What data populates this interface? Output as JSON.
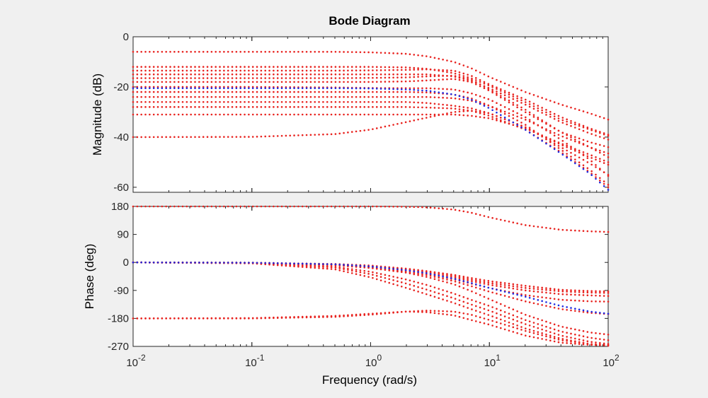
{
  "chart_data": [
    {
      "type": "line",
      "title": "Bode Diagram",
      "ylabel": "Magnitude (dB)",
      "x_scale": "log",
      "xlim": [
        0.01,
        100
      ],
      "ylim": [
        -62,
        0
      ],
      "yticks": [
        0,
        -20,
        -40,
        -60
      ],
      "ytick_labels": [
        "0",
        "-20",
        "-40",
        "-60"
      ],
      "marker": "dotted",
      "colors": {
        "red": "#e8231f",
        "blue": "#1f2be0",
        "background": "#f0f0f0",
        "axes": "#ffffff"
      },
      "x": [
        0.01,
        0.1,
        0.5,
        1,
        2,
        3,
        5,
        7,
        10,
        20,
        40,
        70,
        100
      ],
      "series": [
        {
          "name": "red-1",
          "color": "red",
          "values": [
            -6,
            -6,
            -6,
            -6.2,
            -6.8,
            -7.8,
            -10,
            -12.5,
            -16,
            -22,
            -27,
            -30.5,
            -33
          ]
        },
        {
          "name": "red-2",
          "color": "red",
          "values": [
            -12,
            -12,
            -12,
            -12,
            -12.2,
            -12.8,
            -14.5,
            -16.5,
            -19.5,
            -26,
            -33,
            -37,
            -39.5
          ]
        },
        {
          "name": "red-3",
          "color": "red",
          "values": [
            -13.5,
            -13.5,
            -13.5,
            -13.4,
            -13.2,
            -13,
            -13.5,
            -15.5,
            -19,
            -25,
            -32,
            -36.5,
            -39
          ]
        },
        {
          "name": "red-4",
          "color": "red",
          "values": [
            -15,
            -15,
            -15,
            -15,
            -15,
            -15,
            -15.8,
            -17.5,
            -20.5,
            -27,
            -34,
            -38.5,
            -41
          ]
        },
        {
          "name": "red-5",
          "color": "red",
          "values": [
            -16.5,
            -16.5,
            -16.5,
            -16.4,
            -16.2,
            -15.8,
            -15.5,
            -17,
            -21,
            -29,
            -38,
            -44,
            -48
          ]
        },
        {
          "name": "red-6",
          "color": "red",
          "values": [
            -18,
            -18,
            -18,
            -18,
            -17.8,
            -17.4,
            -16.8,
            -18,
            -21.5,
            -30,
            -38,
            -42,
            -44
          ]
        },
        {
          "name": "red-7",
          "color": "red",
          "values": [
            -20,
            -20,
            -20.2,
            -20.4,
            -20.5,
            -20.5,
            -21,
            -22.5,
            -25,
            -32,
            -41,
            -49,
            -55.5
          ]
        },
        {
          "name": "red-8",
          "color": "red",
          "values": [
            -22,
            -22,
            -22,
            -22,
            -22,
            -22.2,
            -23,
            -24.5,
            -27.5,
            -35,
            -45,
            -53,
            -59
          ]
        },
        {
          "name": "red-9",
          "color": "red",
          "values": [
            -24,
            -24,
            -24,
            -24,
            -24,
            -24,
            -24.5,
            -25.5,
            -27.5,
            -33,
            -39.5,
            -44,
            -46.5
          ]
        },
        {
          "name": "red-10",
          "color": "red",
          "values": [
            -26,
            -26,
            -26,
            -26,
            -26,
            -26.4,
            -27.5,
            -28.5,
            -30.5,
            -36,
            -43,
            -48,
            -51
          ]
        },
        {
          "name": "red-11",
          "color": "red",
          "values": [
            -28,
            -28,
            -28,
            -28,
            -28,
            -28.2,
            -28.6,
            -29.5,
            -31.5,
            -37,
            -46,
            -54,
            -60
          ]
        },
        {
          "name": "red-12",
          "color": "red",
          "values": [
            -31,
            -31,
            -31,
            -31,
            -31,
            -31,
            -31,
            -31.5,
            -32.5,
            -36.5,
            -42.5,
            -47,
            -50
          ]
        },
        {
          "name": "red-13",
          "color": "red",
          "values": [
            -40,
            -39.9,
            -38.8,
            -37,
            -34,
            -32.2,
            -30,
            -29.5,
            -30.5,
            -36,
            -44,
            -50.5,
            -55
          ]
        },
        {
          "name": "nominal",
          "color": "blue",
          "values": [
            -20.5,
            -20.5,
            -20.5,
            -20.6,
            -21,
            -21.5,
            -23,
            -25,
            -28.5,
            -37,
            -46.5,
            -54.5,
            -61
          ]
        }
      ]
    },
    {
      "type": "line",
      "ylabel": "Phase (deg)",
      "xlabel": "Frequency  (rad/s)",
      "x_scale": "log",
      "xlim": [
        0.01,
        100
      ],
      "ylim": [
        -270,
        180
      ],
      "yticks": [
        180,
        90,
        0,
        -90,
        -180,
        -270
      ],
      "ytick_labels": [
        "180",
        "90",
        "0",
        "-90",
        "-180",
        "-270"
      ],
      "xticks": [
        {
          "value": 0.01,
          "base": "10",
          "exp": "-2"
        },
        {
          "value": 0.1,
          "base": "10",
          "exp": "-1"
        },
        {
          "value": 1,
          "base": "10",
          "exp": "0"
        },
        {
          "value": 10,
          "base": "10",
          "exp": "1"
        },
        {
          "value": 100,
          "base": "10",
          "exp": "2"
        }
      ],
      "marker": "dotted",
      "x": [
        0.01,
        0.1,
        0.5,
        1,
        2,
        3,
        5,
        7,
        10,
        20,
        40,
        70,
        100
      ],
      "series": [
        {
          "name": "p-red-1",
          "color": "red",
          "values": [
            180,
            180,
            180,
            180,
            179,
            177,
            170,
            160,
            145,
            120,
            105,
            100,
            98
          ]
        },
        {
          "name": "p-red-2",
          "color": "red",
          "values": [
            0,
            -1,
            -5,
            -10,
            -20,
            -28,
            -40,
            -50,
            -60,
            -75,
            -88,
            -92,
            -93
          ]
        },
        {
          "name": "p-red-3",
          "color": "red",
          "values": [
            0,
            -1,
            -6,
            -12,
            -22,
            -30,
            -44,
            -55,
            -66,
            -82,
            -93,
            -97,
            -98
          ]
        },
        {
          "name": "p-red-4",
          "color": "red",
          "values": [
            0,
            -1,
            -6,
            -13,
            -24,
            -33,
            -48,
            -60,
            -72,
            -90,
            -102,
            -106,
            -108
          ]
        },
        {
          "name": "p-red-5",
          "color": "red",
          "values": [
            0,
            -1,
            -7,
            -15,
            -27,
            -37,
            -54,
            -68,
            -82,
            -105,
            -120,
            -125,
            -126
          ]
        },
        {
          "name": "p-red-6",
          "color": "red",
          "values": [
            0,
            -1,
            -8,
            -17,
            -30,
            -41,
            -60,
            -76,
            -94,
            -125,
            -150,
            -162,
            -166
          ]
        },
        {
          "name": "p-red-7",
          "color": "red",
          "values": [
            0,
            -1,
            -9,
            -18,
            -33,
            -47,
            -70,
            -92,
            -118,
            -168,
            -206,
            -225,
            -232
          ]
        },
        {
          "name": "p-red-8",
          "color": "red",
          "values": [
            0,
            -2,
            -14,
            -30,
            -55,
            -73,
            -100,
            -120,
            -140,
            -185,
            -222,
            -242,
            -250
          ]
        },
        {
          "name": "p-red-9",
          "color": "red",
          "values": [
            0,
            -2,
            -16,
            -38,
            -68,
            -88,
            -115,
            -135,
            -155,
            -198,
            -235,
            -255,
            -262
          ]
        },
        {
          "name": "p-red-10",
          "color": "red",
          "values": [
            0,
            -3,
            -22,
            -48,
            -82,
            -103,
            -130,
            -150,
            -170,
            -212,
            -245,
            -262,
            -268
          ]
        },
        {
          "name": "p-red-11",
          "color": "red",
          "values": [
            -180,
            -180,
            -175,
            -168,
            -158,
            -155,
            -158,
            -168,
            -185,
            -220,
            -250,
            -262,
            -265
          ]
        },
        {
          "name": "p-red-12",
          "color": "red",
          "values": [
            -180,
            -179,
            -172,
            -165,
            -158,
            -160,
            -170,
            -185,
            -200,
            -235,
            -258,
            -265,
            -267
          ]
        },
        {
          "name": "p-nominal",
          "color": "blue",
          "values": [
            0,
            -1,
            -6,
            -13,
            -25,
            -35,
            -52,
            -66,
            -82,
            -110,
            -140,
            -158,
            -165
          ]
        }
      ]
    }
  ]
}
